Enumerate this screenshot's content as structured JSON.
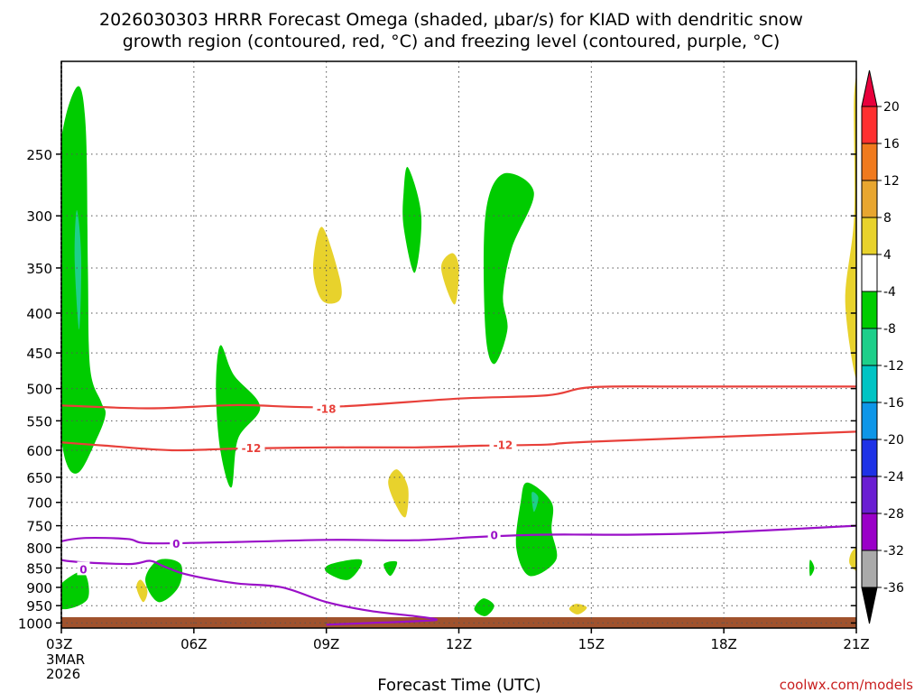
{
  "title": {
    "line1": "2026030303 HRRR Forecast Omega (shaded, μbar/s) for KIAD with dendritic snow",
    "line2": "growth region (contoured, red, °C) and freezing level (contoured, purple, °C)"
  },
  "credit": "coolwx.com/models",
  "chart_data": {
    "type": "heatmap",
    "xlabel": "Forecast Time (UTC)",
    "x_ticks": [
      {
        "label": "03Z",
        "hour": 0
      },
      {
        "label": "06Z",
        "hour": 3
      },
      {
        "label": "09Z",
        "hour": 6
      },
      {
        "label": "12Z",
        "hour": 9
      },
      {
        "label": "15Z",
        "hour": 12
      },
      {
        "label": "18Z",
        "hour": 15
      },
      {
        "label": "21Z",
        "hour": 18
      }
    ],
    "x_first_extra": [
      "3MAR",
      "2026"
    ],
    "xlim_hours": [
      0,
      18
    ],
    "y_ticks": [
      250,
      300,
      350,
      400,
      450,
      500,
      550,
      600,
      650,
      700,
      750,
      800,
      850,
      900,
      950,
      1000
    ],
    "ylim_hpa": [
      190,
      1015
    ],
    "grid": true,
    "colorbar": {
      "labels": [
        "20",
        "16",
        "12",
        "8",
        "4",
        "-4",
        "-8",
        "-12",
        "-16",
        "-20",
        "-24",
        "-28",
        "-32",
        "-36"
      ],
      "colors": [
        "#e8003c",
        "#ff3030",
        "#f07a1e",
        "#e8a630",
        "#e8d22c",
        "#ffffff",
        "#00cc00",
        "#1ecf8a",
        "#00c4c4",
        "#0e96e8",
        "#1e32e6",
        "#6a1ed2",
        "#9a00c8",
        "#aaaaaa",
        "#000000"
      ]
    },
    "omega_regions": [
      {
        "level": "-4 to -8",
        "color": "#00cc00",
        "points": [
          [
            0.35,
            205
          ],
          [
            0.55,
            230
          ],
          [
            0.6,
            350
          ],
          [
            0.65,
            470
          ],
          [
            0.9,
            520
          ],
          [
            1.0,
            540
          ],
          [
            0.8,
            580
          ],
          [
            0.4,
            640
          ],
          [
            0.1,
            620
          ],
          [
            -0.1,
            520
          ],
          [
            -0.2,
            400
          ],
          [
            -0.05,
            250
          ]
        ]
      },
      {
        "level": "-8 to -12",
        "color": "#1ecf8a",
        "points": [
          [
            0.35,
            295
          ],
          [
            0.45,
            340
          ],
          [
            0.4,
            420
          ],
          [
            0.3,
            340
          ]
        ]
      },
      {
        "level": "-4 to -8",
        "color": "#00cc00",
        "points": [
          [
            3.6,
            440
          ],
          [
            3.9,
            480
          ],
          [
            4.5,
            528
          ],
          [
            4.0,
            580
          ],
          [
            3.85,
            670
          ],
          [
            3.6,
            600
          ],
          [
            3.5,
            500
          ]
        ]
      },
      {
        "level": "4 to 8",
        "color": "#e8d22c",
        "points": [
          [
            5.9,
            310
          ],
          [
            6.3,
            360
          ],
          [
            6.3,
            385
          ],
          [
            5.9,
            385
          ],
          [
            5.7,
            350
          ]
        ]
      },
      {
        "level": "-4 to -8",
        "color": "#00cc00",
        "points": [
          [
            7.85,
            260
          ],
          [
            8.15,
            300
          ],
          [
            8.0,
            355
          ],
          [
            7.75,
            310
          ],
          [
            7.75,
            280
          ]
        ]
      },
      {
        "level": "4 to 8",
        "color": "#e8d22c",
        "points": [
          [
            8.85,
            335
          ],
          [
            9.0,
            350
          ],
          [
            8.9,
            390
          ],
          [
            8.6,
            350
          ]
        ]
      },
      {
        "level": "-4 to -8",
        "color": "#00cc00",
        "points": [
          [
            10.0,
            265
          ],
          [
            10.7,
            280
          ],
          [
            10.2,
            330
          ],
          [
            10.0,
            380
          ],
          [
            10.1,
            420
          ],
          [
            9.8,
            465
          ],
          [
            9.6,
            420
          ],
          [
            9.6,
            300
          ]
        ]
      },
      {
        "level": "4 to 8",
        "color": "#e8d22c",
        "points": [
          [
            17.95,
            210
          ],
          [
            18.1,
            210
          ],
          [
            18.1,
            480
          ],
          [
            17.75,
            390
          ],
          [
            17.95,
            300
          ]
        ]
      },
      {
        "level": "4 to 8",
        "color": "#e8d22c",
        "points": [
          [
            7.6,
            635
          ],
          [
            7.85,
            670
          ],
          [
            7.8,
            730
          ],
          [
            7.6,
            710
          ],
          [
            7.4,
            660
          ]
        ]
      },
      {
        "level": "-4 to -8",
        "color": "#00cc00",
        "points": [
          [
            10.55,
            660
          ],
          [
            11.1,
            700
          ],
          [
            11.1,
            760
          ],
          [
            11.2,
            830
          ],
          [
            10.6,
            870
          ],
          [
            10.3,
            800
          ],
          [
            10.4,
            700
          ]
        ]
      },
      {
        "level": "-8 to -12",
        "color": "#1ecf8a",
        "points": [
          [
            10.65,
            680
          ],
          [
            10.8,
            690
          ],
          [
            10.7,
            720
          ]
        ]
      },
      {
        "level": "-4 to -8",
        "color": "#00cc00",
        "points": [
          [
            0.0,
            890
          ],
          [
            0.5,
            860
          ],
          [
            0.6,
            930
          ],
          [
            0.1,
            960
          ],
          [
            -0.2,
            940
          ]
        ]
      },
      {
        "level": "4 to 8",
        "color": "#e8d22c",
        "points": [
          [
            1.8,
            880
          ],
          [
            1.95,
            910
          ],
          [
            1.85,
            940
          ],
          [
            1.7,
            900
          ]
        ]
      },
      {
        "level": "-4 to -8",
        "color": "#00cc00",
        "points": [
          [
            2.2,
            830
          ],
          [
            2.7,
            840
          ],
          [
            2.65,
            900
          ],
          [
            2.2,
            940
          ],
          [
            1.9,
            880
          ]
        ]
      },
      {
        "level": "-4 to -8",
        "color": "#00cc00",
        "points": [
          [
            6.1,
            840
          ],
          [
            6.8,
            830
          ],
          [
            6.5,
            880
          ],
          [
            6.0,
            860
          ]
        ]
      },
      {
        "level": "-4 to -8",
        "color": "#00cc00",
        "points": [
          [
            7.3,
            840
          ],
          [
            7.6,
            835
          ],
          [
            7.45,
            870
          ]
        ]
      },
      {
        "level": "-4 to -8",
        "color": "#00cc00",
        "points": [
          [
            9.55,
            930
          ],
          [
            9.8,
            950
          ],
          [
            9.6,
            980
          ],
          [
            9.35,
            960
          ]
        ]
      },
      {
        "level": "4 to 8",
        "color": "#e8d22c",
        "points": [
          [
            11.65,
            945
          ],
          [
            11.9,
            955
          ],
          [
            11.7,
            975
          ],
          [
            11.5,
            960
          ]
        ]
      },
      {
        "level": "-4 to -8",
        "color": "#00cc00",
        "points": [
          [
            16.95,
            830
          ],
          [
            17.05,
            850
          ],
          [
            16.95,
            870
          ]
        ]
      },
      {
        "level": "4 to 8",
        "color": "#e8d22c",
        "points": [
          [
            17.9,
            810
          ],
          [
            18.1,
            800
          ],
          [
            18.1,
            860
          ],
          [
            17.85,
            840
          ]
        ]
      }
    ],
    "contours": [
      {
        "name": "-18",
        "color": "#e8403a",
        "label": "-18",
        "label_at": [
          6.0,
          530
        ],
        "points": [
          [
            -0.2,
            525
          ],
          [
            2.0,
            530
          ],
          [
            4.0,
            525
          ],
          [
            6.0,
            528
          ],
          [
            9.0,
            515
          ],
          [
            11.0,
            510
          ],
          [
            12.0,
            498
          ],
          [
            14.0,
            497
          ],
          [
            18.0,
            497
          ]
        ]
      },
      {
        "name": "-12",
        "color": "#e8403a",
        "label": "-12",
        "label_at": [
          4.3,
          595
        ],
        "points": [
          [
            -0.2,
            585
          ],
          [
            1.0,
            592
          ],
          [
            2.5,
            600
          ],
          [
            4.0,
            597
          ],
          [
            6.0,
            595
          ],
          [
            8.0,
            595
          ],
          [
            9.5,
            592
          ],
          [
            11.0,
            590
          ],
          [
            12.0,
            585
          ],
          [
            18.0,
            568
          ]
        ]
      },
      {
        "name": "-12",
        "color": "#e8403a",
        "label": "-12",
        "label_at": [
          10.0,
          590
        ],
        "points": []
      },
      {
        "name": "0",
        "color": "#9a10c8",
        "label": "0",
        "label_at": [
          2.6,
          790
        ],
        "points": [
          [
            18.0,
            750
          ],
          [
            15.0,
            765
          ],
          [
            13.0,
            770
          ],
          [
            11.0,
            770
          ],
          [
            9.5,
            775
          ],
          [
            8.0,
            783
          ],
          [
            6.0,
            782
          ],
          [
            4.0,
            787
          ],
          [
            2.0,
            790
          ],
          [
            1.5,
            780
          ],
          [
            0.5,
            778
          ],
          [
            -0.1,
            788
          ],
          [
            -0.25,
            800
          ],
          [
            0.0,
            830
          ],
          [
            1.5,
            840
          ],
          [
            2.0,
            832
          ],
          [
            2.3,
            845
          ],
          [
            2.7,
            862
          ],
          [
            3.2,
            875
          ],
          [
            4.0,
            890
          ],
          [
            5.0,
            900
          ],
          [
            6.0,
            940
          ],
          [
            7.0,
            965
          ],
          [
            8.0,
            980
          ],
          [
            8.5,
            990
          ],
          [
            8.0,
            995
          ],
          [
            7.0,
            1000
          ],
          [
            6.0,
            1005
          ]
        ]
      },
      {
        "name": "0",
        "color": "#9a10c8",
        "label": "0",
        "label_at": [
          9.8,
          770
        ],
        "points": []
      },
      {
        "name": "0",
        "color": "#9a10c8",
        "label": "0",
        "label_at": [
          0.5,
          852
        ],
        "points": []
      }
    ],
    "terrain_color": "#a0522d"
  }
}
